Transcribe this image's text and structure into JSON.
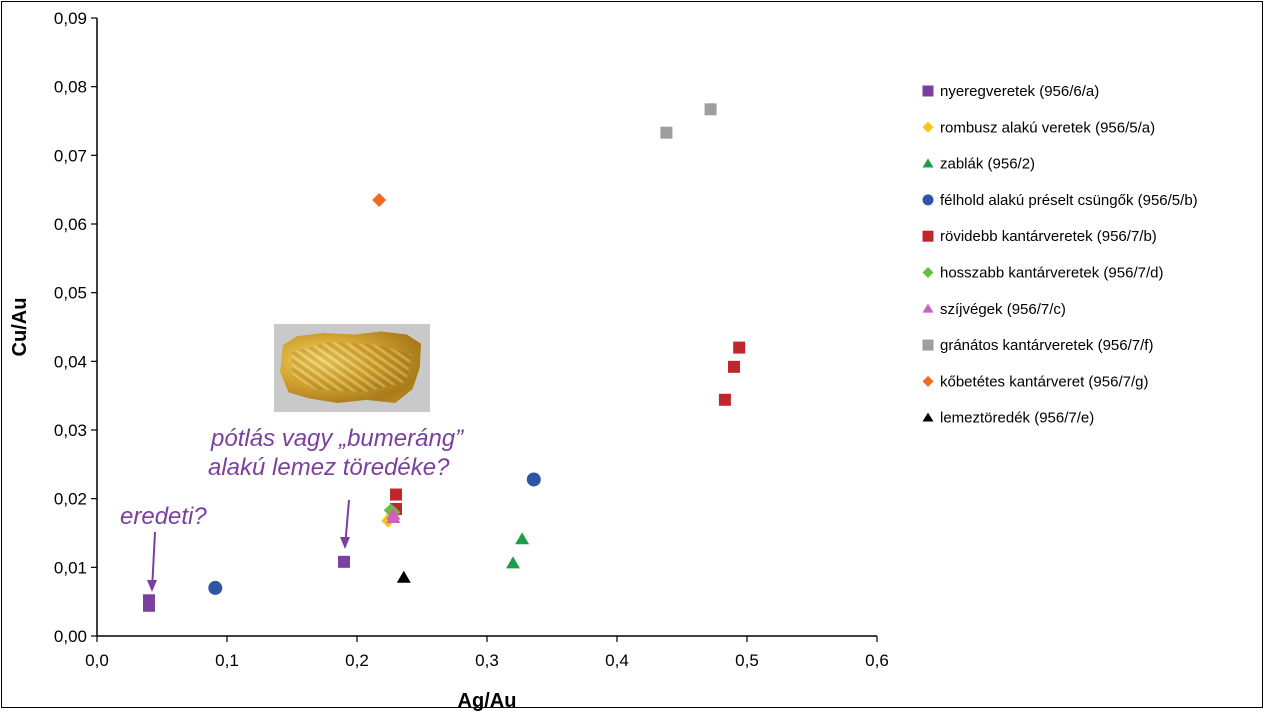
{
  "chart_data": {
    "type": "scatter",
    "xlabel": "Ag/Au",
    "ylabel": "Cu/Au",
    "xlim": [
      0,
      0.6
    ],
    "ylim": [
      0,
      0.09
    ],
    "xticks": [
      "0,0",
      "0,1",
      "0,2",
      "0,3",
      "0,4",
      "0,5",
      "0,6"
    ],
    "yticks": [
      "0,00",
      "0,01",
      "0,02",
      "0,03",
      "0,04",
      "0,05",
      "0,06",
      "0,07",
      "0,08",
      "0,09"
    ],
    "legend_position": "right",
    "grid": false,
    "series": [
      {
        "name": "nyeregveretek (956/6/a)",
        "marker": "square",
        "color": "#7b3fa0",
        "points": [
          [
            0.04,
            0.0052
          ],
          [
            0.04,
            0.0044
          ],
          [
            0.19,
            0.0108
          ]
        ]
      },
      {
        "name": "rombusz alakú veretek (956/5/a)",
        "marker": "diamond",
        "color": "#f5c518",
        "points": [
          [
            0.224,
            0.0168
          ],
          [
            0.227,
            0.0175
          ]
        ]
      },
      {
        "name": "zablák (956/2)",
        "marker": "triangle",
        "color": "#1e9e48",
        "points": [
          [
            0.32,
            0.0106
          ],
          [
            0.327,
            0.0141
          ]
        ]
      },
      {
        "name": "félhold alakú préselt csüngők (956/5/b)",
        "marker": "circle",
        "color": "#2f55a4",
        "points": [
          [
            0.091,
            0.007
          ],
          [
            0.336,
            0.0228
          ]
        ]
      },
      {
        "name": "rövidebb kantárveretek (956/7/b)",
        "marker": "square",
        "color": "#c0262d",
        "points": [
          [
            0.23,
            0.0206
          ],
          [
            0.23,
            0.0185
          ],
          [
            0.483,
            0.0344
          ],
          [
            0.49,
            0.0392
          ],
          [
            0.494,
            0.042
          ]
        ]
      },
      {
        "name": "hosszabb kantárveretek (956/7/d)",
        "marker": "diamond",
        "color": "#6cbb45",
        "points": [
          [
            0.226,
            0.0183
          ],
          [
            0.228,
            0.018
          ]
        ]
      },
      {
        "name": "szíjvégek (956/7/c)",
        "marker": "triangle",
        "color": "#d05fc0",
        "points": [
          [
            0.228,
            0.0172
          ],
          [
            0.228,
            0.0177
          ]
        ]
      },
      {
        "name": "gránátos kantárveretek (956/7/f)",
        "marker": "square",
        "color": "#9e9e9e",
        "points": [
          [
            0.438,
            0.0733
          ],
          [
            0.472,
            0.0767
          ]
        ]
      },
      {
        "name": "kőbetétes kantárveret (956/7/g)",
        "marker": "diamond",
        "color": "#f26b21",
        "points": [
          [
            0.217,
            0.0635
          ]
        ]
      },
      {
        "name": "lemeztöredék (956/7/e)",
        "marker": "triangle",
        "color": "#000000",
        "points": [
          [
            0.236,
            0.0085
          ]
        ]
      }
    ],
    "annotations": [
      {
        "lines": [
          "eredeti?"
        ],
        "target": [
          0.042,
          0.0056
        ]
      },
      {
        "lines": [
          "pótlás vagy „bumeráng”",
          "alakú lemez töredéke?"
        ],
        "target": [
          0.19,
          0.0128
        ]
      }
    ]
  }
}
